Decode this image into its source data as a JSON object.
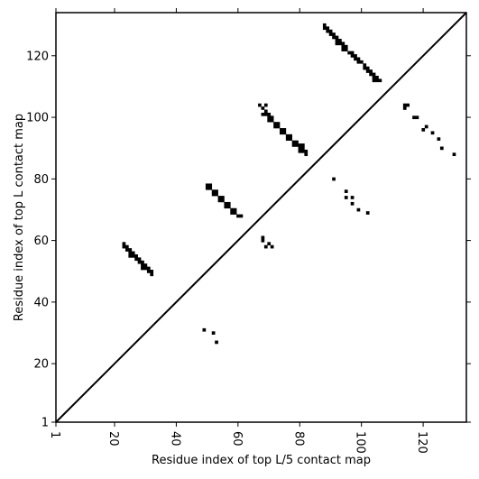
{
  "chart_data": {
    "type": "scatter",
    "title": "",
    "xlabel": "Residue index of top L/5 contact map",
    "ylabel": "Residue index of top L contact map",
    "xlim": [
      1,
      134
    ],
    "ylim": [
      1,
      134
    ],
    "x_ticks": [
      1,
      20,
      40,
      60,
      80,
      100,
      120
    ],
    "y_ticks": [
      1,
      20,
      40,
      60,
      80,
      100,
      120
    ],
    "grid": false,
    "diagonal": true,
    "marker": "square",
    "colors": {
      "marker": "#000000",
      "diagonal": "#000000",
      "frame": "#000000"
    },
    "series": [
      {
        "points": [
          [
            23,
            59
          ],
          [
            23,
            58
          ],
          [
            24,
            58
          ],
          [
            24,
            57
          ],
          [
            25,
            57
          ],
          [
            25,
            56
          ],
          [
            25,
            55
          ],
          [
            26,
            56
          ],
          [
            26,
            55
          ],
          [
            27,
            54
          ],
          [
            27,
            55
          ],
          [
            28,
            54
          ],
          [
            28,
            53
          ],
          [
            29,
            53
          ],
          [
            29,
            52
          ],
          [
            29,
            51
          ],
          [
            30,
            52
          ],
          [
            30,
            51
          ],
          [
            31,
            51
          ],
          [
            31,
            50
          ],
          [
            32,
            50
          ],
          [
            32,
            49
          ],
          [
            49,
            31
          ],
          [
            52,
            30
          ],
          [
            53,
            27
          ],
          [
            50,
            78
          ],
          [
            50,
            77
          ],
          [
            51,
            78
          ],
          [
            51,
            77
          ],
          [
            52,
            76
          ],
          [
            52,
            75
          ],
          [
            53,
            76
          ],
          [
            53,
            75
          ],
          [
            54,
            74
          ],
          [
            54,
            73
          ],
          [
            55,
            74
          ],
          [
            55,
            73
          ],
          [
            56,
            72
          ],
          [
            56,
            71
          ],
          [
            57,
            72
          ],
          [
            57,
            71
          ],
          [
            58,
            70
          ],
          [
            58,
            69
          ],
          [
            59,
            70
          ],
          [
            59,
            69
          ],
          [
            60,
            68
          ],
          [
            61,
            68
          ],
          [
            67,
            104
          ],
          [
            68,
            103
          ],
          [
            69,
            104
          ],
          [
            68,
            101
          ],
          [
            69,
            101
          ],
          [
            69,
            102
          ],
          [
            70,
            101
          ],
          [
            70,
            100
          ],
          [
            70,
            99
          ],
          [
            71,
            100
          ],
          [
            71,
            99
          ],
          [
            72,
            98
          ],
          [
            72,
            97
          ],
          [
            73,
            98
          ],
          [
            73,
            97
          ],
          [
            74,
            96
          ],
          [
            74,
            95
          ],
          [
            75,
            96
          ],
          [
            75,
            95
          ],
          [
            76,
            94
          ],
          [
            76,
            93
          ],
          [
            77,
            94
          ],
          [
            77,
            93
          ],
          [
            78,
            92
          ],
          [
            78,
            91
          ],
          [
            79,
            92
          ],
          [
            79,
            91
          ],
          [
            80,
            91
          ],
          [
            80,
            90
          ],
          [
            80,
            89
          ],
          [
            81,
            91
          ],
          [
            81,
            90
          ],
          [
            81,
            89
          ],
          [
            82,
            89
          ],
          [
            82,
            88
          ],
          [
            68,
            61
          ],
          [
            68,
            60
          ],
          [
            69,
            58
          ],
          [
            70,
            59
          ],
          [
            71,
            58
          ],
          [
            88,
            130
          ],
          [
            88,
            129
          ],
          [
            89,
            129
          ],
          [
            89,
            128
          ],
          [
            90,
            128
          ],
          [
            90,
            127
          ],
          [
            91,
            127
          ],
          [
            91,
            126
          ],
          [
            92,
            126
          ],
          [
            92,
            125
          ],
          [
            92,
            124
          ],
          [
            93,
            125
          ],
          [
            93,
            124
          ],
          [
            94,
            124
          ],
          [
            94,
            123
          ],
          [
            94,
            122
          ],
          [
            95,
            123
          ],
          [
            95,
            122
          ],
          [
            96,
            121
          ],
          [
            97,
            121
          ],
          [
            97,
            120
          ],
          [
            98,
            120
          ],
          [
            98,
            119
          ],
          [
            99,
            119
          ],
          [
            99,
            118
          ],
          [
            100,
            118
          ],
          [
            101,
            117
          ],
          [
            101,
            116
          ],
          [
            102,
            116
          ],
          [
            102,
            115
          ],
          [
            103,
            115
          ],
          [
            103,
            114
          ],
          [
            104,
            114
          ],
          [
            104,
            113
          ],
          [
            104,
            112
          ],
          [
            105,
            113
          ],
          [
            105,
            112
          ],
          [
            106,
            112
          ],
          [
            91,
            80
          ],
          [
            95,
            76
          ],
          [
            95,
            74
          ],
          [
            97,
            74
          ],
          [
            97,
            72
          ],
          [
            99,
            70
          ],
          [
            102,
            69
          ],
          [
            114,
            104
          ],
          [
            114,
            103
          ],
          [
            115,
            104
          ],
          [
            117,
            100
          ],
          [
            118,
            100
          ],
          [
            120,
            96
          ],
          [
            121,
            97
          ],
          [
            123,
            95
          ],
          [
            125,
            93
          ],
          [
            126,
            90
          ],
          [
            130,
            88
          ]
        ]
      }
    ]
  }
}
